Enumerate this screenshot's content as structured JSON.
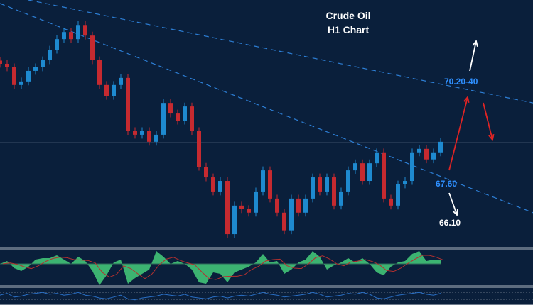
{
  "title": {
    "line1": "Crude Oil",
    "line2": "H1 Chart"
  },
  "annotations": {
    "target_high": {
      "text": "70.20-40",
      "color": "#2e8fff"
    },
    "support": {
      "text": "67.60",
      "color": "#2e8fff"
    },
    "target_low": {
      "text": "66.10",
      "color": "#ffffff"
    }
  },
  "colors": {
    "background": "#0a1f3b",
    "bull": "#1e8ad0",
    "bear": "#c62a30",
    "trendline": "#2d7fd6",
    "oscillator_fill": "#3cb371",
    "oscillator_signal": "#b5302f",
    "bottom_line": "#2a6fc4",
    "arrow_up_red": "#e02424",
    "arrow_white": "#ffffff"
  },
  "chart_data": {
    "type": "candlestick",
    "title": "Crude Oil H1 Chart",
    "grid": false,
    "ylim": [
      65.28,
      72.91
    ],
    "closes": [
      70.92,
      70.81,
      70.26,
      70.37,
      70.7,
      70.81,
      71.03,
      71.36,
      71.69,
      71.91,
      71.69,
      72.13,
      71.8,
      71.03,
      70.26,
      69.92,
      70.26,
      70.48,
      68.82,
      68.71,
      68.82,
      68.49,
      68.71,
      69.7,
      69.37,
      69.15,
      69.59,
      68.82,
      67.71,
      67.38,
      66.94,
      67.27,
      65.61,
      66.5,
      66.39,
      66.28,
      66.94,
      67.6,
      66.72,
      66.28,
      65.73,
      66.72,
      66.28,
      66.72,
      67.38,
      66.94,
      67.38,
      66.5,
      66.94,
      67.6,
      67.82,
      67.27,
      67.82,
      68.16,
      66.72,
      66.5,
      67.16,
      67.27,
      68.16,
      68.27,
      67.94,
      68.16,
      68.49
    ],
    "horizontal_level": 68.46,
    "trendlines": [
      {
        "from": [
          4,
          72.91
        ],
        "to": [
          75,
          69.7
        ]
      },
      {
        "from": [
          0,
          72.8
        ],
        "to": [
          75,
          66.28
        ]
      }
    ],
    "oscillator": [
      0,
      0.2,
      -0.3,
      -0.5,
      -0.2,
      0.3,
      0.4,
      0.4,
      0.6,
      0.3,
      0,
      0.5,
      0.2,
      -0.5,
      -1.5,
      -0.8,
      0.1,
      0.3,
      -1.4,
      -1.0,
      -0.7,
      -0.4,
      0.9,
      0.5,
      0,
      0.2,
      0,
      -0.4,
      -1.3,
      -1.4,
      -0.6,
      -0.7,
      -1.3,
      -0.6,
      -0.4,
      -0.2,
      0.1,
      0.7,
      0.1,
      0.2,
      -0.7,
      -0.4,
      0.1,
      0.3,
      0.9,
      0.5,
      -0.4,
      -0.1,
      0.1,
      0.4,
      0.1,
      0.4,
      0,
      -0.6,
      -0.8,
      -0.2,
      0.1,
      0.2,
      0.7,
      0.9,
      0.2,
      0.3,
      0.3
    ],
    "bottom_indicator": [
      0.6,
      0.8,
      0.4,
      0.5,
      0.7,
      0.8,
      0.9,
      0.7,
      0.8,
      0.6,
      0.7,
      0.9,
      0.6,
      0.5,
      0.3,
      0.2,
      0.4,
      0.6,
      0.2,
      0.1,
      0.3,
      0.4,
      0.5,
      0.7,
      0.6,
      0.5,
      0.7,
      0.4,
      0.3,
      0.2,
      0.4,
      0.5,
      0.3,
      0.5,
      0.6,
      0.5,
      0.7,
      0.9,
      0.7,
      0.6,
      0.4,
      0.5,
      0.6,
      0.7,
      0.9,
      0.7,
      0.4,
      0.5,
      0.6,
      0.8,
      0.7,
      0.9,
      0.7,
      0.3,
      0.2,
      0.4,
      0.6,
      0.7,
      0.8,
      0.9,
      0.7,
      0.6,
      0.8
    ]
  }
}
